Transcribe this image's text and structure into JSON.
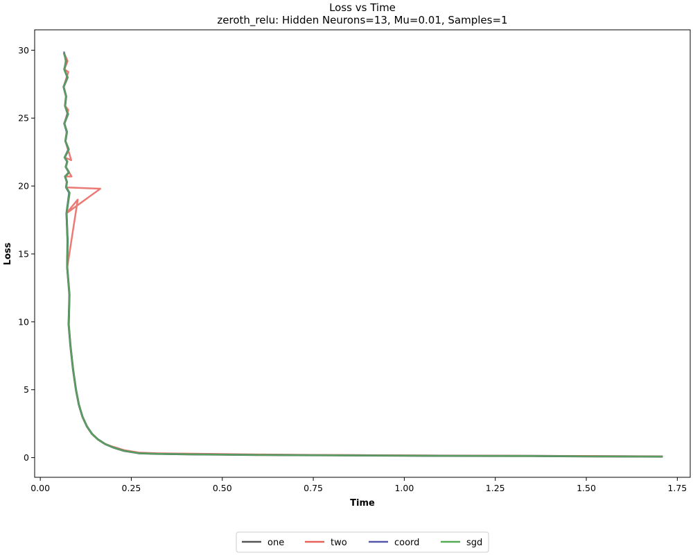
{
  "chart_data": {
    "type": "line",
    "title": "Loss vs Time",
    "subtitle": "zeroth_relu: Hidden Neurons=13, Mu=0.01, Samples=1",
    "xlabel": "Time",
    "ylabel": "Loss",
    "xlim": [
      -0.0155,
      1.7855
    ],
    "ylim": [
      -1.45,
      31.5
    ],
    "xticks": [
      0.0,
      0.25,
      0.5,
      0.75,
      1.0,
      1.25,
      1.5,
      1.75
    ],
    "xtick_labels": [
      "0.00",
      "0.25",
      "0.50",
      "0.75",
      "1.00",
      "1.25",
      "1.50",
      "1.75"
    ],
    "yticks": [
      0,
      5,
      10,
      15,
      20,
      25,
      30
    ],
    "ytick_labels": [
      "0",
      "5",
      "10",
      "15",
      "20",
      "25",
      "30"
    ],
    "grid": false,
    "legend_position": "bottom-center",
    "series": [
      {
        "name": "one",
        "color": "#555555",
        "x": [
          0.065,
          0.072,
          0.066,
          0.075,
          0.064,
          0.071,
          0.068,
          0.076,
          0.066,
          0.073,
          0.069,
          0.078,
          0.067,
          0.074,
          0.07,
          0.079,
          0.068,
          0.073,
          0.071,
          0.08,
          0.072,
          0.075,
          0.074,
          0.08,
          0.078,
          0.083,
          0.09,
          0.098,
          0.106,
          0.116,
          0.128,
          0.142,
          0.158,
          0.178,
          0.2,
          0.23,
          0.27,
          0.32,
          0.4,
          0.5,
          0.6,
          0.75,
          0.9,
          1.05,
          1.2,
          1.35,
          1.5,
          1.71
        ],
        "values": [
          29.8,
          29.2,
          28.6,
          28.0,
          27.3,
          26.6,
          25.9,
          25.3,
          24.6,
          24.0,
          23.3,
          22.7,
          22.1,
          21.8,
          21.4,
          21.0,
          20.7,
          20.3,
          19.9,
          19.5,
          18.0,
          16.0,
          14.0,
          12.0,
          9.8,
          8.2,
          6.5,
          5.0,
          3.9,
          3.0,
          2.3,
          1.75,
          1.35,
          1.0,
          0.75,
          0.5,
          0.33,
          0.28,
          0.25,
          0.22,
          0.2,
          0.18,
          0.16,
          0.14,
          0.13,
          0.12,
          0.1,
          0.08
        ]
      },
      {
        "name": "two",
        "color": "#e8625c",
        "x": [
          0.065,
          0.075,
          0.066,
          0.077,
          0.064,
          0.071,
          0.068,
          0.077,
          0.066,
          0.073,
          0.069,
          0.085,
          0.067,
          0.074,
          0.07,
          0.086,
          0.068,
          0.073,
          0.071,
          0.165,
          0.072,
          0.103,
          0.074,
          0.08,
          0.078,
          0.083,
          0.09,
          0.098,
          0.106,
          0.116,
          0.128,
          0.142,
          0.158,
          0.178,
          0.2,
          0.23,
          0.27,
          0.32,
          0.4,
          0.5,
          0.6,
          0.75,
          0.9,
          1.05,
          1.2,
          1.35,
          1.5,
          1.71
        ],
        "values": [
          29.8,
          29.2,
          28.6,
          28.4,
          27.3,
          26.6,
          25.9,
          25.6,
          24.6,
          24.0,
          23.3,
          21.9,
          22.1,
          21.8,
          21.4,
          20.7,
          20.7,
          20.3,
          19.9,
          19.8,
          18.0,
          19.0,
          14.0,
          12.0,
          9.8,
          8.2,
          6.5,
          5.0,
          3.9,
          3.0,
          2.3,
          1.75,
          1.35,
          1.0,
          0.8,
          0.55,
          0.37,
          0.32,
          0.29,
          0.26,
          0.23,
          0.2,
          0.18,
          0.16,
          0.15,
          0.13,
          0.12,
          0.1
        ]
      },
      {
        "name": "coord",
        "color": "#5555aa",
        "x": [
          0.065,
          0.07,
          0.066,
          0.074,
          0.064,
          0.071,
          0.068,
          0.075,
          0.066,
          0.073,
          0.069,
          0.077,
          0.067,
          0.074,
          0.07,
          0.078,
          0.068,
          0.073,
          0.071,
          0.079,
          0.072,
          0.075,
          0.074,
          0.08,
          0.078,
          0.083,
          0.09,
          0.098,
          0.106,
          0.116,
          0.128,
          0.142,
          0.158,
          0.178,
          0.2,
          0.23,
          0.27,
          0.32,
          0.4,
          0.5,
          0.6,
          0.75,
          0.9,
          1.05,
          1.2,
          1.35,
          1.5,
          1.71
        ],
        "values": [
          29.9,
          29.2,
          28.6,
          28.0,
          27.3,
          26.6,
          25.9,
          25.3,
          24.6,
          23.9,
          23.3,
          22.7,
          22.1,
          21.8,
          21.4,
          21.0,
          20.7,
          20.3,
          19.9,
          19.5,
          18.0,
          16.0,
          14.0,
          12.0,
          9.8,
          8.2,
          6.5,
          5.0,
          3.9,
          3.0,
          2.3,
          1.75,
          1.35,
          1.0,
          0.75,
          0.5,
          0.33,
          0.28,
          0.25,
          0.22,
          0.2,
          0.18,
          0.16,
          0.14,
          0.13,
          0.12,
          0.1,
          0.08
        ]
      },
      {
        "name": "sgd",
        "color": "#55aa55",
        "x": [
          0.065,
          0.071,
          0.066,
          0.075,
          0.064,
          0.071,
          0.068,
          0.076,
          0.066,
          0.073,
          0.069,
          0.078,
          0.067,
          0.074,
          0.07,
          0.079,
          0.068,
          0.073,
          0.071,
          0.08,
          0.072,
          0.075,
          0.074,
          0.08,
          0.078,
          0.083,
          0.09,
          0.098,
          0.106,
          0.116,
          0.128,
          0.142,
          0.158,
          0.178,
          0.2,
          0.23,
          0.27,
          0.32,
          0.4,
          0.5,
          0.6,
          0.75,
          0.9,
          1.05,
          1.2,
          1.35,
          1.5,
          1.71
        ],
        "values": [
          29.8,
          29.2,
          28.6,
          28.0,
          27.3,
          26.6,
          25.9,
          25.3,
          24.6,
          24.0,
          23.3,
          22.7,
          22.1,
          21.8,
          21.4,
          21.0,
          20.7,
          20.3,
          19.9,
          19.5,
          18.0,
          16.0,
          14.0,
          12.0,
          9.8,
          8.2,
          6.5,
          5.0,
          3.9,
          3.0,
          2.3,
          1.75,
          1.35,
          1.0,
          0.75,
          0.5,
          0.33,
          0.28,
          0.25,
          0.22,
          0.2,
          0.18,
          0.16,
          0.14,
          0.13,
          0.12,
          0.1,
          0.08
        ]
      }
    ]
  }
}
